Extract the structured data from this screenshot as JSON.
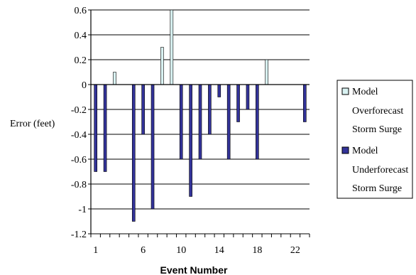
{
  "chart_data": {
    "type": "bar",
    "title": "",
    "xlabel": "Event Number",
    "ylabel": "Error (feet)",
    "ylim": [
      -1.2,
      0.6
    ],
    "ytick_labels": [
      "0.6",
      "0.4",
      "0.2",
      "0",
      "-0.2",
      "-0.4",
      "-0.6",
      "-0.8",
      "-1",
      "-1.2"
    ],
    "yticks": [
      0.6,
      0.4,
      0.2,
      0,
      -0.2,
      -0.4,
      -0.6,
      -0.8,
      -1,
      -1.2
    ],
    "xtick_labels": [
      "1",
      "6",
      "10",
      "14",
      "18",
      "22"
    ],
    "xticks": [
      1,
      6,
      10,
      14,
      18,
      22
    ],
    "x": [
      1,
      2,
      3,
      4,
      5,
      6,
      7,
      8,
      9,
      10,
      11,
      12,
      13,
      14,
      15,
      16,
      17,
      18,
      19,
      20,
      21,
      22,
      23
    ],
    "grid": true,
    "legend_position": "right",
    "series": [
      {
        "name": "Model Overforecast Storm Surge",
        "color": "#d9f2f2",
        "values": [
          0,
          0,
          0.1,
          0,
          0,
          0,
          0,
          0.3,
          0.6,
          0,
          0,
          0,
          0,
          0,
          0,
          0,
          0,
          0,
          0.2,
          0,
          0,
          0,
          0
        ]
      },
      {
        "name": "Model Underforecast Storm Surge",
        "color": "#333399",
        "values": [
          -0.7,
          -0.7,
          0,
          0,
          -1.1,
          -0.4,
          -1.0,
          0,
          0,
          -0.6,
          -0.9,
          -0.6,
          -0.4,
          -0.1,
          -0.6,
          -0.3,
          -0.2,
          -0.6,
          0,
          0,
          0,
          0,
          -0.3
        ]
      }
    ]
  },
  "legend": {
    "entries": [
      {
        "lines": [
          "Model",
          "Overforecast",
          "Storm Surge"
        ]
      },
      {
        "lines": [
          "Model",
          "Underforecast",
          "Storm Surge"
        ]
      }
    ]
  }
}
